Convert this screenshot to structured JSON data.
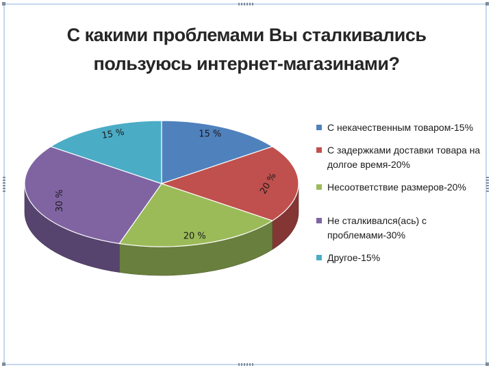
{
  "chart_data": {
    "type": "pie",
    "title_lines": [
      "С какими проблемами Вы сталкивались",
      "пользуюсь интернет-магазинами?"
    ],
    "slices": [
      {
        "legend": "С некачественным товаром-15%",
        "value": 15,
        "label": "15 %",
        "color": "#4f81bd"
      },
      {
        "legend": "С задержками доставки товара на долгое время-20%",
        "value": 20,
        "label": "20 %",
        "color": "#c0504d"
      },
      {
        "legend": "Несоответствие размеров-20%",
        "value": 20,
        "label": "20 %",
        "color": "#9bbb59"
      },
      {
        "legend": "Не сталкивался(ась) с проблемами-30%",
        "value": 30,
        "label": "30 %",
        "color": "#8064a2"
      },
      {
        "legend": "Другое-15%",
        "value": 15,
        "label": "15 %",
        "color": "#4bacc6"
      }
    ],
    "legend_position": "right",
    "style": "3d"
  }
}
